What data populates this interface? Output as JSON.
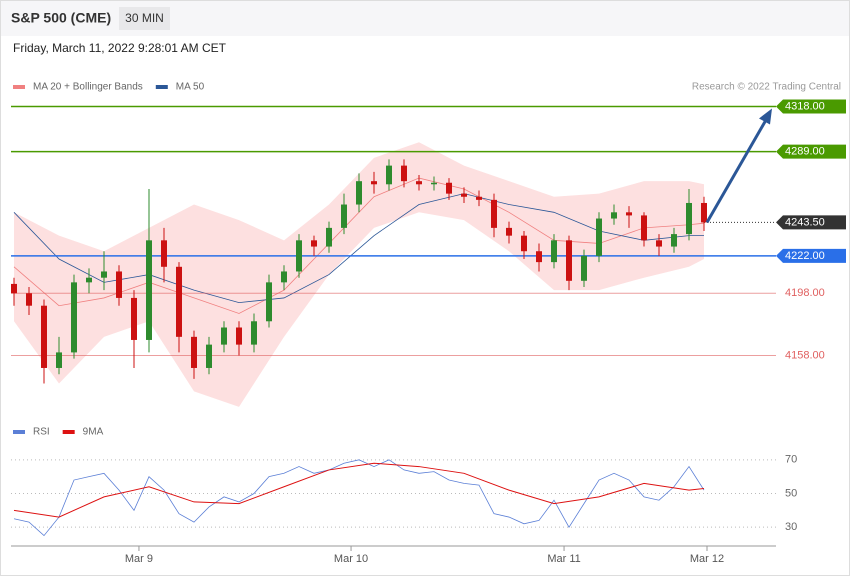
{
  "header": {
    "title": "S&P 500 (CME)",
    "interval": "30 MIN",
    "timestamp": "Friday, March 11, 2022 9:28:01 AM CET"
  },
  "chart_data": [
    {
      "type": "candlestick",
      "legend": [
        {
          "name": "MA 20 + Bollinger Bands",
          "color": "#f08080"
        },
        {
          "name": "MA 50",
          "color": "#2b5797"
        }
      ],
      "credit": "Research © 2022 Trading Central",
      "ylim": [
        4123,
        4335
      ],
      "candles": [
        [
          4204,
          4208,
          4190,
          4198
        ],
        [
          4198,
          4202,
          4184,
          4190
        ],
        [
          4190,
          4194,
          4140,
          4150
        ],
        [
          4150,
          4170,
          4146,
          4160
        ],
        [
          4160,
          4210,
          4156,
          4205
        ],
        [
          4205,
          4214,
          4198,
          4208
        ],
        [
          4208,
          4225,
          4200,
          4212
        ],
        [
          4212,
          4216,
          4190,
          4195
        ],
        [
          4195,
          4200,
          4150,
          4168
        ],
        [
          4168,
          4265,
          4160,
          4232
        ],
        [
          4232,
          4240,
          4205,
          4215
        ],
        [
          4215,
          4218,
          4160,
          4170
        ],
        [
          4170,
          4174,
          4143,
          4150
        ],
        [
          4150,
          4170,
          4146,
          4165
        ],
        [
          4165,
          4180,
          4160,
          4176
        ],
        [
          4176,
          4180,
          4158,
          4165
        ],
        [
          4165,
          4185,
          4160,
          4180
        ],
        [
          4180,
          4210,
          4176,
          4205
        ],
        [
          4205,
          4216,
          4200,
          4212
        ],
        [
          4212,
          4236,
          4208,
          4232
        ],
        [
          4232,
          4235,
          4222,
          4228
        ],
        [
          4228,
          4244,
          4224,
          4240
        ],
        [
          4240,
          4262,
          4236,
          4255
        ],
        [
          4255,
          4275,
          4250,
          4270
        ],
        [
          4270,
          4276,
          4262,
          4268
        ],
        [
          4268,
          4284,
          4264,
          4280
        ],
        [
          4280,
          4284,
          4266,
          4270
        ],
        [
          4270,
          4274,
          4264,
          4268
        ],
        [
          4268,
          4273,
          4264,
          4269
        ],
        [
          4269,
          4272,
          4258,
          4262
        ],
        [
          4262,
          4266,
          4256,
          4260
        ],
        [
          4260,
          4264,
          4254,
          4258
        ],
        [
          4258,
          4262,
          4234,
          4240
        ],
        [
          4240,
          4244,
          4230,
          4235
        ],
        [
          4235,
          4238,
          4220,
          4225
        ],
        [
          4225,
          4230,
          4212,
          4218
        ],
        [
          4218,
          4236,
          4214,
          4232
        ],
        [
          4232,
          4235,
          4200,
          4206
        ],
        [
          4206,
          4226,
          4202,
          4222
        ],
        [
          4222,
          4250,
          4218,
          4246
        ],
        [
          4246,
          4255,
          4242,
          4250
        ],
        [
          4250,
          4254,
          4240,
          4248
        ],
        [
          4248,
          4250,
          4228,
          4232
        ],
        [
          4232,
          4236,
          4222,
          4228
        ],
        [
          4228,
          4240,
          4224,
          4236
        ],
        [
          4236,
          4265,
          4232,
          4256
        ],
        [
          4256,
          4260,
          4238,
          4243.5
        ]
      ],
      "up_color": "#2e8b2e",
      "down_color": "#cc1111",
      "band_index": [
        0,
        3,
        6,
        9,
        12,
        15,
        18,
        21,
        24,
        27,
        30,
        33,
        36,
        39,
        42,
        45,
        46
      ],
      "band_upper": [
        4250,
        4235,
        4225,
        4240,
        4255,
        4245,
        4232,
        4255,
        4285,
        4295,
        4280,
        4270,
        4260,
        4262,
        4270,
        4270,
        4268
      ],
      "band_lower": [
        4180,
        4140,
        4170,
        4180,
        4135,
        4125,
        4170,
        4210,
        4240,
        4250,
        4245,
        4225,
        4200,
        4200,
        4208,
        4215,
        4220
      ],
      "ma20": [
        4215,
        4190,
        4195,
        4205,
        4195,
        4185,
        4200,
        4230,
        4260,
        4272,
        4265,
        4250,
        4232,
        4230,
        4240,
        4242,
        4243
      ],
      "ma50": [
        4250,
        4220,
        4205,
        4210,
        4200,
        4192,
        4195,
        4210,
        4235,
        4255,
        4262,
        4255,
        4250,
        4238,
        4232,
        4235,
        4235
      ],
      "band_color": "#fde0e0",
      "levels": [
        {
          "value": 4318,
          "label": "4318.00",
          "color": "#4a9a00",
          "style": "box"
        },
        {
          "value": 4289,
          "label": "4289.00",
          "color": "#4a9a00",
          "style": "box"
        },
        {
          "value": 4243.5,
          "label": "4243.50",
          "color": "#333333",
          "style": "current"
        },
        {
          "value": 4222,
          "label": "4222.00",
          "color": "#2a6fe8",
          "style": "box"
        },
        {
          "value": 4198,
          "label": "4198.00",
          "color": "#e06060",
          "style": "text"
        },
        {
          "value": 4158,
          "label": "4158.00",
          "color": "#e06060",
          "style": "text"
        }
      ],
      "target": 4318,
      "arrow_color": "#2b5797"
    },
    {
      "type": "line",
      "legend": [
        {
          "name": "RSI",
          "color": "#5b7fd6"
        },
        {
          "name": "9MA",
          "color": "#dd1111"
        }
      ],
      "ylim": [
        20,
        80
      ],
      "yticks": [
        70,
        50,
        30
      ],
      "rsi": [
        35,
        33,
        25,
        36,
        58,
        60,
        62,
        52,
        40,
        60,
        52,
        38,
        33,
        42,
        48,
        45,
        50,
        60,
        62,
        66,
        62,
        64,
        68,
        70,
        66,
        70,
        64,
        62,
        63,
        58,
        56,
        55,
        38,
        36,
        32,
        34,
        46,
        30,
        44,
        58,
        62,
        58,
        48,
        46,
        54,
        66,
        52
      ],
      "ma_index": [
        0,
        3,
        6,
        9,
        12,
        15,
        18,
        21,
        24,
        27,
        30,
        33,
        36,
        39,
        42,
        45,
        46
      ],
      "ma": [
        40,
        36,
        48,
        54,
        45,
        44,
        54,
        64,
        68,
        66,
        62,
        52,
        44,
        48,
        56,
        52,
        53
      ],
      "xticks": [
        {
          "value": 8.33,
          "label": "Mar 9"
        },
        {
          "value": 22.47,
          "label": "Mar 10"
        },
        {
          "value": 36.67,
          "label": "Mar 11"
        },
        {
          "value": 46.2,
          "label": "Mar 12"
        }
      ]
    }
  ]
}
